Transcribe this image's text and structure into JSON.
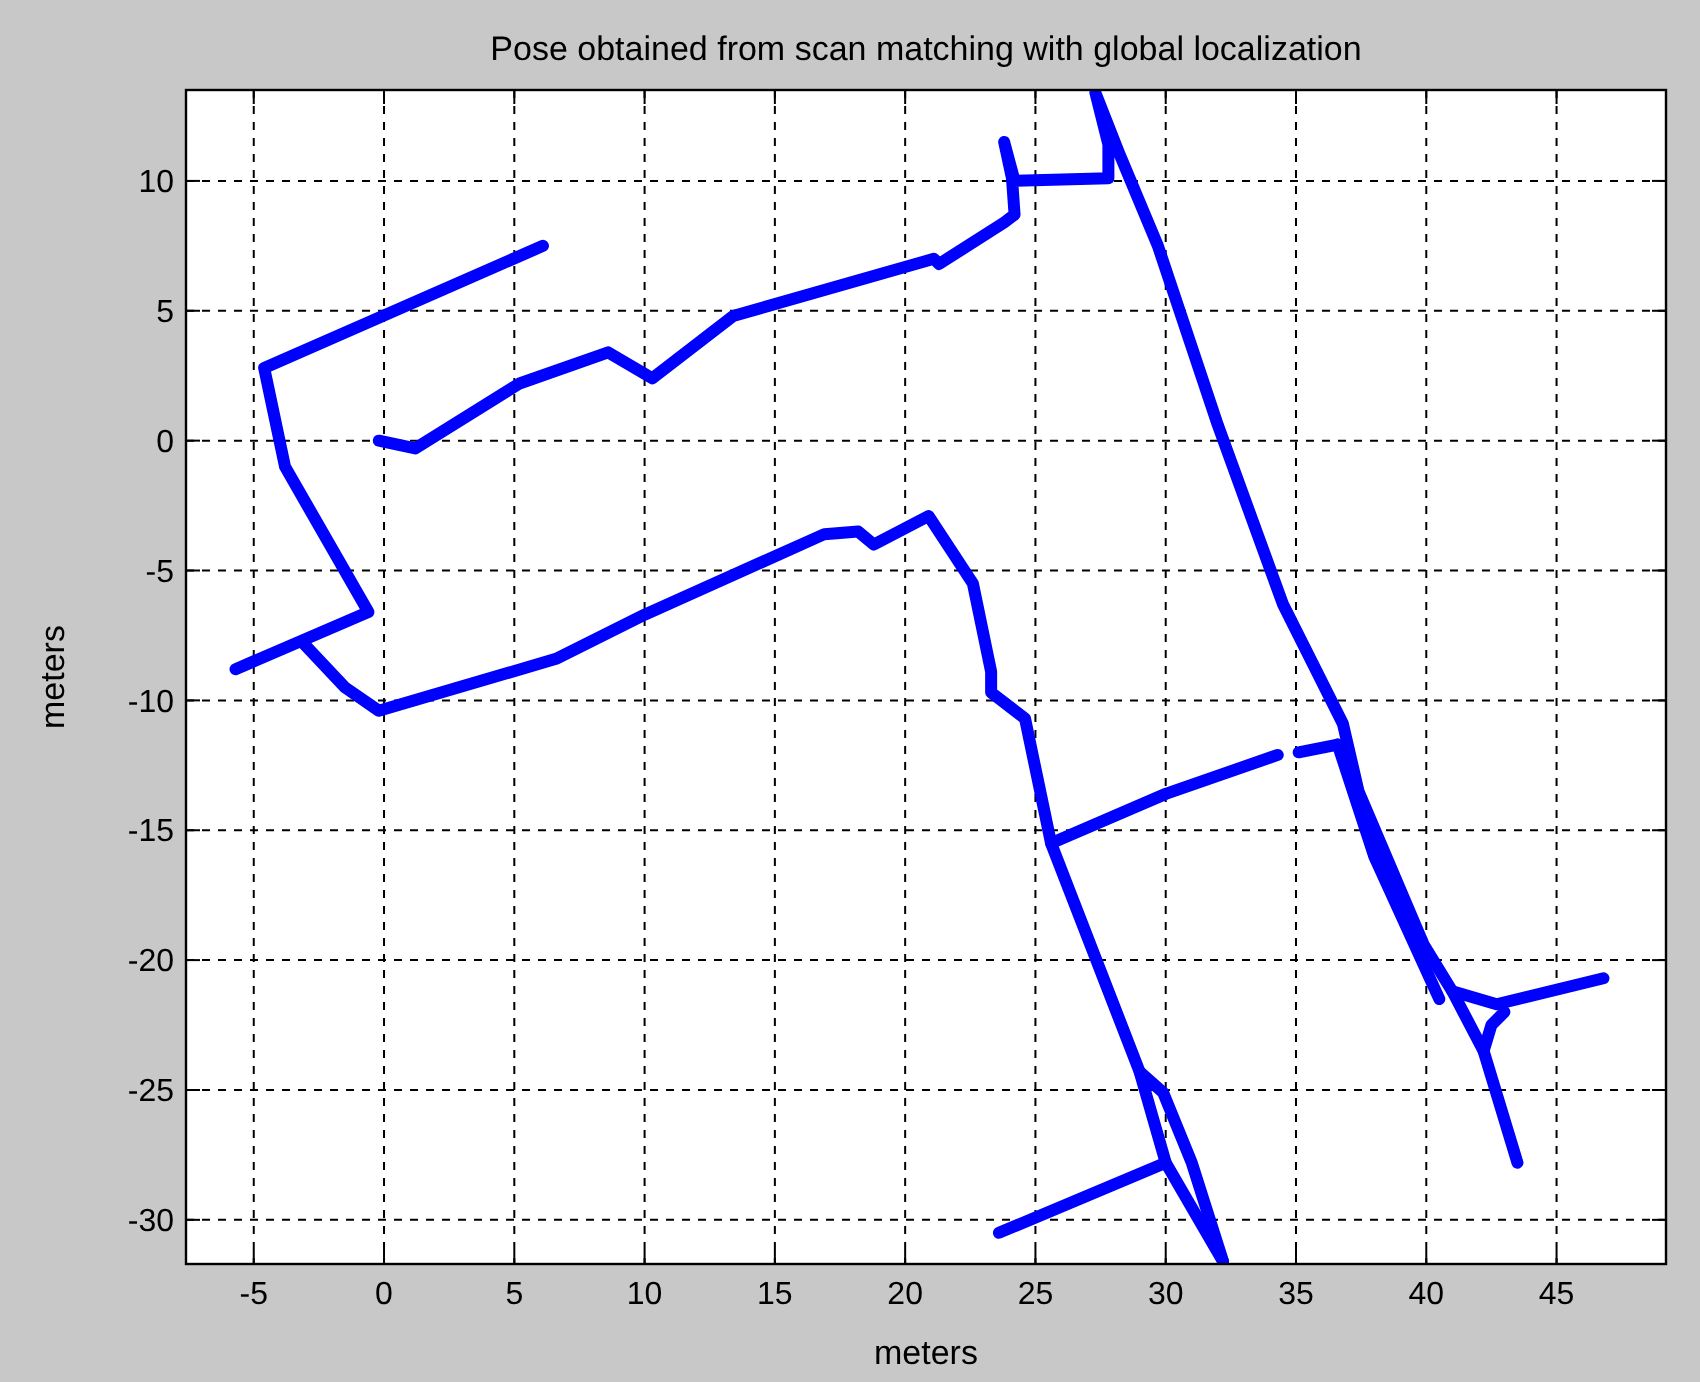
{
  "chart_data": {
    "type": "line",
    "title": "Pose obtained from scan matching with global localization",
    "xlabel": "meters",
    "ylabel": "meters",
    "xlim": [
      -7.6,
      49.2
    ],
    "ylim": [
      -31.7,
      13.5
    ],
    "xticks": [
      -5,
      0,
      5,
      10,
      15,
      20,
      25,
      30,
      35,
      40,
      45
    ],
    "yticks": [
      -30,
      -25,
      -20,
      -15,
      -10,
      -5,
      0,
      5,
      10
    ],
    "grid": true,
    "marker": "none",
    "line_style": "solid",
    "series": [
      {
        "color": "#0000ff",
        "x": [
          6.1,
          -4.6,
          -3.8,
          -0.6,
          -5.7
        ],
        "values": [
          7.5,
          2.8,
          -1,
          -6.6,
          -8.8
        ]
      },
      {
        "color": "#0000ff",
        "x": [
          -3.1,
          -1.5,
          -0.2,
          6.6,
          10,
          16.9,
          18.2,
          18.8,
          20.9,
          22.6,
          23.3,
          23.3,
          24.6,
          25.6,
          29.0,
          30.0,
          32.2
        ],
        "values": [
          -7.8,
          -9.5,
          -10.4,
          -8.4,
          -6.7,
          -3.6,
          -3.5,
          -4.0,
          -2.9,
          -5.5,
          -8.9,
          -9.7,
          -10.7,
          -15.5,
          -24.3,
          -27.8,
          -31.6
        ]
      },
      {
        "color": "#0000ff",
        "x": [
          29.0,
          29.9,
          31.0,
          32.2
        ],
        "values": [
          -24.3,
          -25.1,
          -27.8,
          -31.6
        ]
      },
      {
        "color": "#0000ff",
        "x": [
          30.0,
          23.6
        ],
        "values": [
          -27.8,
          -30.5
        ]
      },
      {
        "color": "#0000ff",
        "x": [
          25.6,
          30,
          34.3
        ],
        "values": [
          -15.5,
          -13.6,
          -12.1
        ]
      },
      {
        "color": "#0000ff",
        "x": [
          35.1,
          36.6
        ],
        "values": [
          -12.0,
          -11.7
        ]
      },
      {
        "color": "#0000ff",
        "x": [
          -0.2,
          1.2,
          5.2,
          8.6,
          10.3,
          13.4,
          21.1,
          21.3,
          23.8,
          24.2,
          24.1,
          23.8,
          24.2,
          27.8,
          27.8,
          27.3,
          28.2,
          29.7,
          32.0,
          34.5,
          35.8,
          36.8,
          37.4,
          39.9,
          41.0,
          42.7,
          46.8
        ],
        "values": [
          0,
          -0.3,
          2.2,
          3.4,
          2.4,
          4.8,
          7.0,
          6.8,
          8.4,
          8.7,
          10.1,
          11.5,
          10.0,
          10.1,
          11.4,
          13.4,
          11.1,
          7.5,
          0.6,
          -6.3,
          -8.9,
          -10.9,
          -13.5,
          -19.4,
          -21.2,
          -21.7,
          -20.7
        ]
      },
      {
        "color": "#0000ff",
        "x": [
          36.6,
          38,
          40.5
        ],
        "values": [
          -11.7,
          -16,
          -21.5
        ]
      },
      {
        "color": "#0000ff",
        "x": [
          41.0,
          42.2,
          43.5
        ],
        "values": [
          -21.2,
          -23.5,
          -27.8
        ]
      },
      {
        "color": "#0000ff",
        "x": [
          42.2,
          42.5,
          43
        ],
        "values": [
          -23.5,
          -22.5,
          -22
        ]
      }
    ]
  }
}
